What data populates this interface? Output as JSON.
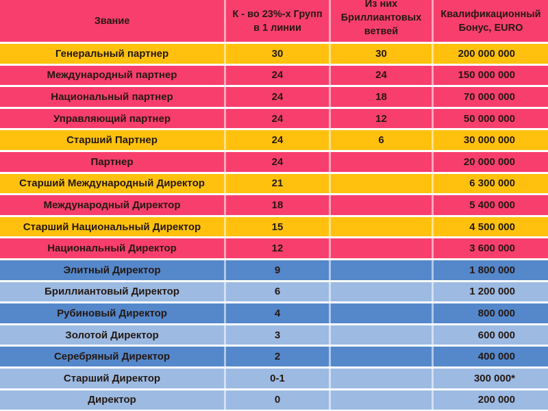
{
  "colors": {
    "pink": "#F83E6D",
    "gold": "#FFC10D",
    "blue": "#5587CB",
    "lightblue": "#9CBAE2",
    "header_bg": "#F83E6D",
    "separator": "#FFFFFF",
    "text": "#241812"
  },
  "table": {
    "header": {
      "rank": "Звание",
      "groups": "К - во 23%-х Групп\nв 1 линии",
      "diamond": "Из них\nБриллиантовых\nветвей",
      "bonus": "Квалификационный\nБонус, EURO"
    },
    "rows": [
      {
        "rank": "Генеральный партнер",
        "groups": "30",
        "diamond": "30",
        "bonus": "200 000 000",
        "color": "gold"
      },
      {
        "rank": "Международный партнер",
        "groups": "24",
        "diamond": "24",
        "bonus": "150 000 000",
        "color": "pink"
      },
      {
        "rank": "Национальный партнер",
        "groups": "24",
        "diamond": "18",
        "bonus": "70 000 000",
        "color": "pink"
      },
      {
        "rank": "Управляющий партнер",
        "groups": "24",
        "diamond": "12",
        "bonus": "50 000 000",
        "color": "pink"
      },
      {
        "rank": "Старший Партнер",
        "groups": "24",
        "diamond": "6",
        "bonus": "30 000 000",
        "color": "gold"
      },
      {
        "rank": "Партнер",
        "groups": "24",
        "diamond": "",
        "bonus": "20 000 000",
        "color": "pink"
      },
      {
        "rank": "Старший Международный Директор",
        "groups": "21",
        "diamond": "",
        "bonus": "6 300 000",
        "color": "gold"
      },
      {
        "rank": "Международный Директор",
        "groups": "18",
        "diamond": "",
        "bonus": "5 400 000",
        "color": "pink"
      },
      {
        "rank": "Старший Национальный Директор",
        "groups": "15",
        "diamond": "",
        "bonus": "4 500 000",
        "color": "gold"
      },
      {
        "rank": "Национальный Директор",
        "groups": "12",
        "diamond": "",
        "bonus": "3 600 000",
        "color": "pink"
      },
      {
        "rank": "Элитный Директор",
        "groups": "9",
        "diamond": "",
        "bonus": "1 800 000",
        "color": "blue"
      },
      {
        "rank": "Бриллиантовый Директор",
        "groups": "6",
        "diamond": "",
        "bonus": "1 200 000",
        "color": "lightblue"
      },
      {
        "rank": "Рубиновый Директор",
        "groups": "4",
        "diamond": "",
        "bonus": "800 000",
        "color": "blue"
      },
      {
        "rank": "Золотой Директор",
        "groups": "3",
        "diamond": "",
        "bonus": "600 000",
        "color": "lightblue"
      },
      {
        "rank": "Серебряный Директор",
        "groups": "2",
        "diamond": "",
        "bonus": "400 000",
        "color": "blue"
      },
      {
        "rank": "Старший Директор",
        "groups": "0-1",
        "diamond": "",
        "bonus": "300 000*",
        "color": "lightblue"
      },
      {
        "rank": "Директор",
        "groups": "0",
        "diamond": "",
        "bonus": "200 000",
        "color": "lightblue"
      }
    ]
  }
}
